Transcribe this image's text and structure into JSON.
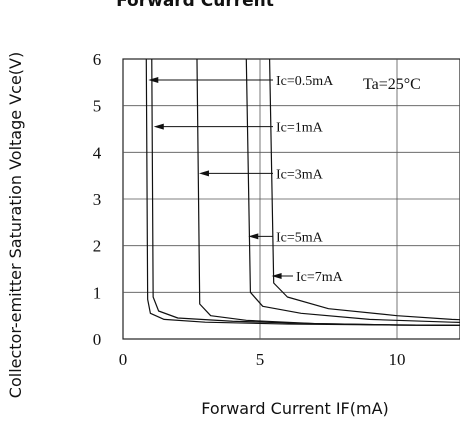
{
  "chart_data": {
    "type": "line",
    "title": "Forward Current",
    "xlabel": "Forward Current  IF(mA)",
    "ylabel": "Collector-emitter Saturation Voltage Vce(V)",
    "xlim": [
      0,
      13
    ],
    "ylim": [
      0,
      6
    ],
    "x_ticks": [
      "0",
      "5",
      "10"
    ],
    "y_ticks": [
      "0",
      "1",
      "2",
      "3",
      "4",
      "5",
      "6"
    ],
    "grid": true,
    "condition": "Ta=25°C",
    "series": [
      {
        "name": "Ic=0.5mA",
        "x": [
          0.85,
          0.9,
          1.0,
          1.5,
          3,
          6,
          10,
          13
        ],
        "y": [
          6.0,
          0.85,
          0.55,
          0.42,
          0.36,
          0.32,
          0.3,
          0.29
        ]
      },
      {
        "name": "Ic=1mA",
        "x": [
          1.05,
          1.1,
          1.3,
          2,
          4,
          7,
          10,
          13
        ],
        "y": [
          6.0,
          0.9,
          0.6,
          0.45,
          0.38,
          0.33,
          0.3,
          0.29
        ]
      },
      {
        "name": "Ic=3mA",
        "x": [
          2.7,
          2.8,
          3.2,
          4.5,
          7,
          10,
          13
        ],
        "y": [
          6.0,
          0.75,
          0.5,
          0.4,
          0.33,
          0.3,
          0.29
        ]
      },
      {
        "name": "Ic=5mA",
        "x": [
          4.5,
          4.65,
          5.1,
          6.5,
          9,
          12,
          13
        ],
        "y": [
          6.0,
          1.0,
          0.7,
          0.55,
          0.42,
          0.36,
          0.35
        ]
      },
      {
        "name": "Ic=7mA",
        "x": [
          5.35,
          5.5,
          6.0,
          7.5,
          10,
          12,
          13
        ],
        "y": [
          6.0,
          1.2,
          0.9,
          0.65,
          0.5,
          0.42,
          0.4
        ]
      }
    ],
    "annotations": [
      {
        "text": "Ic=0.5mA",
        "series": 0
      },
      {
        "text": "Ic=1mA",
        "series": 1
      },
      {
        "text": "Ic=3mA",
        "series": 2
      },
      {
        "text": "Ic=5mA",
        "series": 3
      },
      {
        "text": "Ic=7mA",
        "series": 4
      }
    ]
  }
}
